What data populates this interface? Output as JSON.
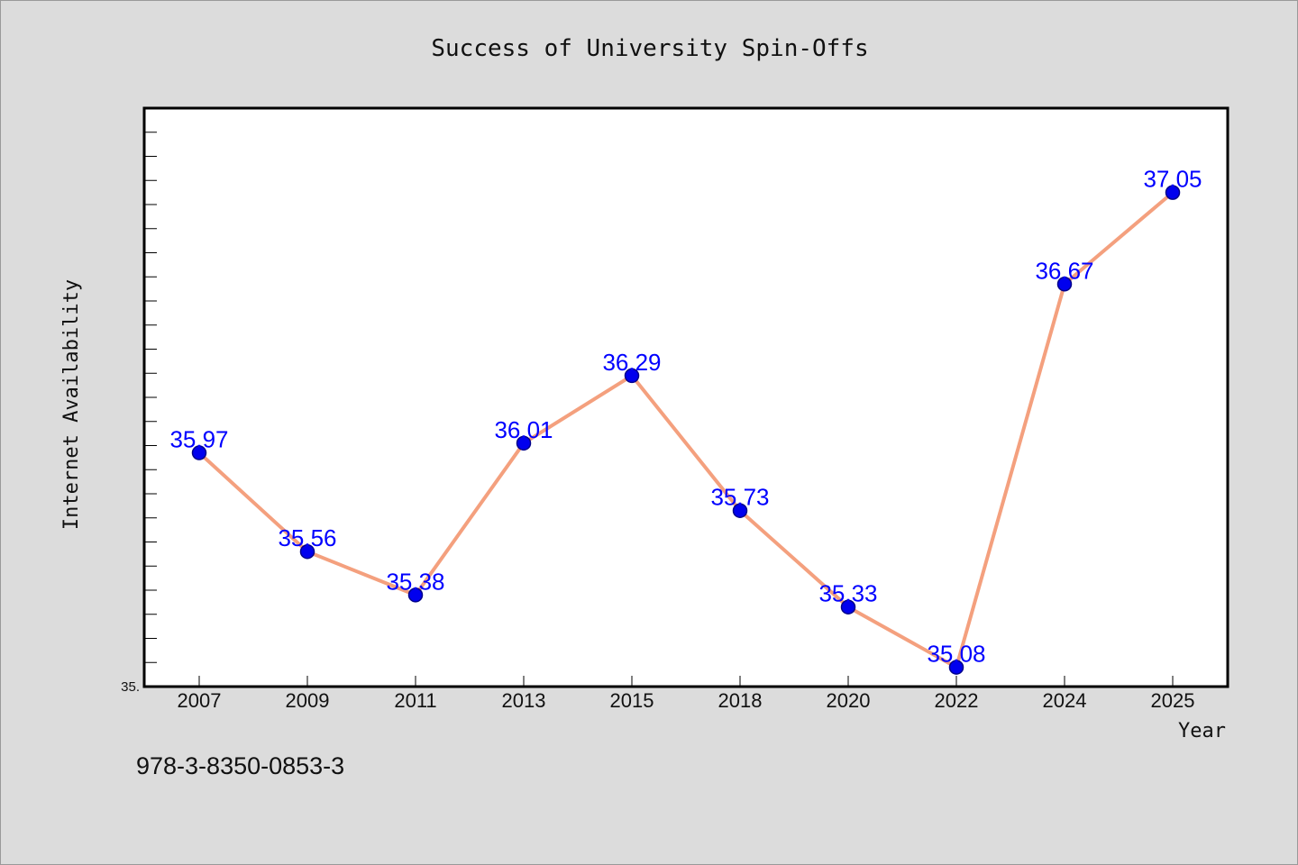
{
  "chart_data": {
    "type": "line",
    "title": "Success of University Spin-Offs",
    "xlabel": "Year",
    "ylabel": "Internet Availability",
    "ymin_label": "35.",
    "categories": [
      "2007",
      "2009",
      "2011",
      "2013",
      "2015",
      "2018",
      "2020",
      "2022",
      "2024",
      "2025"
    ],
    "series": [
      {
        "values": [
          35.97,
          35.56,
          35.38,
          36.01,
          36.29,
          35.73,
          35.33,
          35.08,
          36.67,
          37.05
        ]
      }
    ],
    "data_labels": [
      "35.97",
      "35.56",
      "35.38",
      "36.01",
      "36.29",
      "35.73",
      "35.33",
      "35.08",
      "36.67",
      "37.05"
    ],
    "ylim": [
      35.0,
      37.4
    ],
    "y_minor_tick_step": 0.1,
    "grid": false,
    "legend": "none",
    "colors": {
      "line": "#f4a07e",
      "marker": "#0000ee",
      "marker_edge": "#00008b",
      "data_label": "#0000ff",
      "plot_background": "#ffffff",
      "figure_background": "#dcdcdc"
    }
  },
  "footnote": "978-3-8350-0853-3"
}
